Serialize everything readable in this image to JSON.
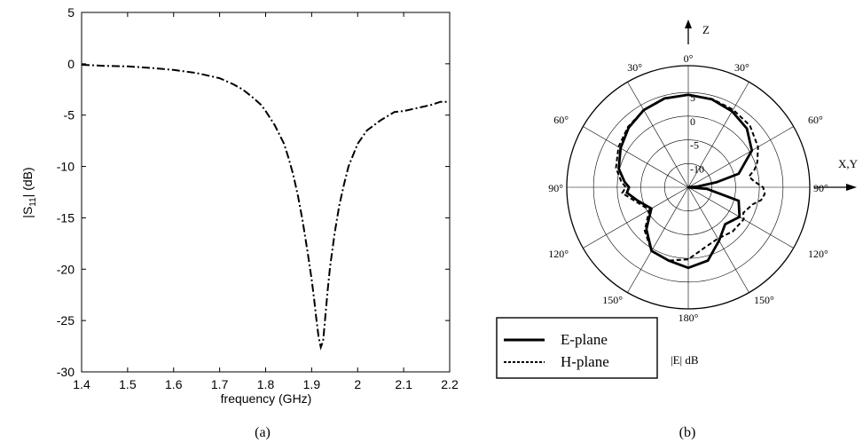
{
  "chart_data": [
    {
      "type": "line",
      "caption": "(a)",
      "xlabel": "frequency (GHz)",
      "ylabel_main": "|S",
      "ylabel_sub": "11",
      "ylabel_tail": "| (dB)",
      "xlim": [
        1.4,
        2.2
      ],
      "ylim": [
        -30,
        5
      ],
      "xticks": [
        "1.4",
        "1.5",
        "1.6",
        "1.7",
        "1.8",
        "1.9",
        "2",
        "2.1",
        "2.2"
      ],
      "yticks": [
        "5",
        "0",
        "-5",
        "-10",
        "-15",
        "-20",
        "-25",
        "-30"
      ],
      "series": [
        {
          "style": "dash-dot",
          "x": [
            1.4,
            1.45,
            1.5,
            1.55,
            1.6,
            1.65,
            1.7,
            1.73,
            1.75,
            1.77,
            1.79,
            1.8,
            1.82,
            1.84,
            1.85,
            1.86,
            1.87,
            1.88,
            1.89,
            1.9,
            1.905,
            1.91,
            1.915,
            1.92,
            1.925,
            1.93,
            1.935,
            1.94,
            1.95,
            1.96,
            1.97,
            1.98,
            2.0,
            2.02,
            2.05,
            2.08,
            2.1,
            2.12,
            2.14,
            2.16,
            2.18,
            2.2
          ],
          "y": [
            -0.1,
            -0.2,
            -0.25,
            -0.4,
            -0.6,
            -0.9,
            -1.4,
            -2.0,
            -2.5,
            -3.2,
            -4.0,
            -4.6,
            -6.0,
            -7.8,
            -9.2,
            -10.8,
            -12.8,
            -15.2,
            -18.0,
            -21.0,
            -22.8,
            -24.8,
            -26.6,
            -27.6,
            -27.0,
            -24.5,
            -22.0,
            -19.8,
            -16.5,
            -13.8,
            -11.8,
            -10.0,
            -7.8,
            -6.5,
            -5.5,
            -4.7,
            -4.6,
            -4.4,
            -4.2,
            -4.0,
            -3.7,
            -3.7
          ]
        }
      ]
    },
    {
      "type": "polar",
      "caption": "(b)",
      "axis_z": "Z",
      "axis_xy": "X,Y",
      "unit_label": "|E| dB",
      "angle_labels": {
        "top": "0°",
        "bottom": "180°",
        "r30": "30°",
        "l30": "30°",
        "r60": "60°",
        "l60": "60°",
        "r90": "90°",
        "l90": "90°",
        "r120": "120°",
        "l120": "120°",
        "r150": "150°",
        "l150": "150°"
      },
      "radial_ticks": [
        "5",
        "0",
        "-5",
        "-10"
      ],
      "rlim": [
        -15,
        5
      ],
      "legend": [
        "E-plane",
        "H-plane"
      ],
      "series": [
        {
          "name": "E-plane",
          "style": "solid",
          "theta": [
            0,
            15,
            30,
            45,
            60,
            75,
            80,
            85,
            88,
            90,
            95,
            105,
            120,
            135,
            150,
            165,
            180,
            195,
            210,
            225,
            240,
            255,
            265,
            270,
            275,
            285,
            300,
            315,
            330,
            345,
            360
          ],
          "r": [
            4.5,
            4.2,
            3.5,
            2.5,
            0.5,
            -4,
            -9,
            -13,
            -15,
            -15,
            -11,
            -4,
            -2.5,
            -4,
            -2,
            1,
            2,
            1,
            0.5,
            -2.5,
            -6,
            -4,
            -2,
            -2.5,
            -1.5,
            0.2,
            1.5,
            2.8,
            3.8,
            4.4,
            4.5
          ]
        },
        {
          "name": "H-plane",
          "style": "dashed",
          "theta": [
            0,
            15,
            30,
            45,
            60,
            70,
            75,
            80,
            85,
            90,
            95,
            100,
            105,
            115,
            120,
            135,
            150,
            165,
            180,
            195,
            210,
            225,
            240,
            255,
            265,
            270,
            275,
            285,
            300,
            315,
            330,
            345,
            360
          ],
          "r": [
            4.5,
            4.3,
            3.9,
            3.4,
            2.0,
            0.5,
            -0.5,
            -2.0,
            -1.0,
            0.8,
            1.2,
            0.6,
            -1.0,
            -2.2,
            -1.5,
            -1.8,
            -2.5,
            -1.8,
            0.2,
            1.0,
            0.5,
            -2.0,
            -5.5,
            -3.5,
            -1.0,
            -1.8,
            -0.8,
            0.8,
            2.0,
            3.0,
            3.8,
            4.3,
            4.5
          ]
        }
      ]
    }
  ]
}
